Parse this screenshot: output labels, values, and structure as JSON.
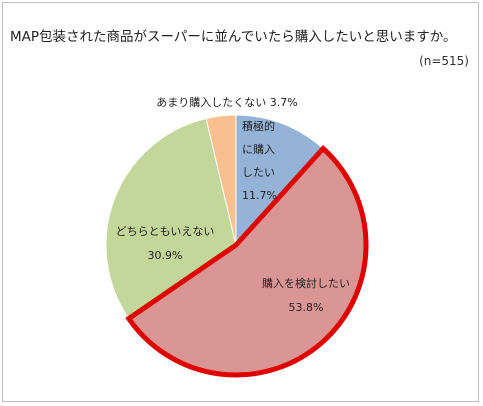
{
  "chart_data": {
    "type": "pie",
    "title": "MAP包装された商品がスーパーに並んでいたら購入したいと思いますか。",
    "subtitle": "(n=515)",
    "slices": [
      {
        "label_lines": [
          "積極的",
          "に購入",
          "したい"
        ],
        "value": 11.7,
        "value_label": "11.7%",
        "color": "#95b3d7"
      },
      {
        "label_lines": [
          "購入を検討したい"
        ],
        "value": 53.8,
        "value_label": "53.8%",
        "color": "#da9694",
        "highlight": true
      },
      {
        "label_lines": [
          "どちらともいえない"
        ],
        "value": 30.9,
        "value_label": "30.9%",
        "color": "#c4d79b"
      },
      {
        "label_lines": [
          "あまり購入したくない"
        ],
        "value": 3.7,
        "value_label": "3.7%",
        "color": "#fabf8f"
      }
    ],
    "highlight_color": "#e00000",
    "start_angle_deg": 0,
    "direction": "clockwise"
  }
}
